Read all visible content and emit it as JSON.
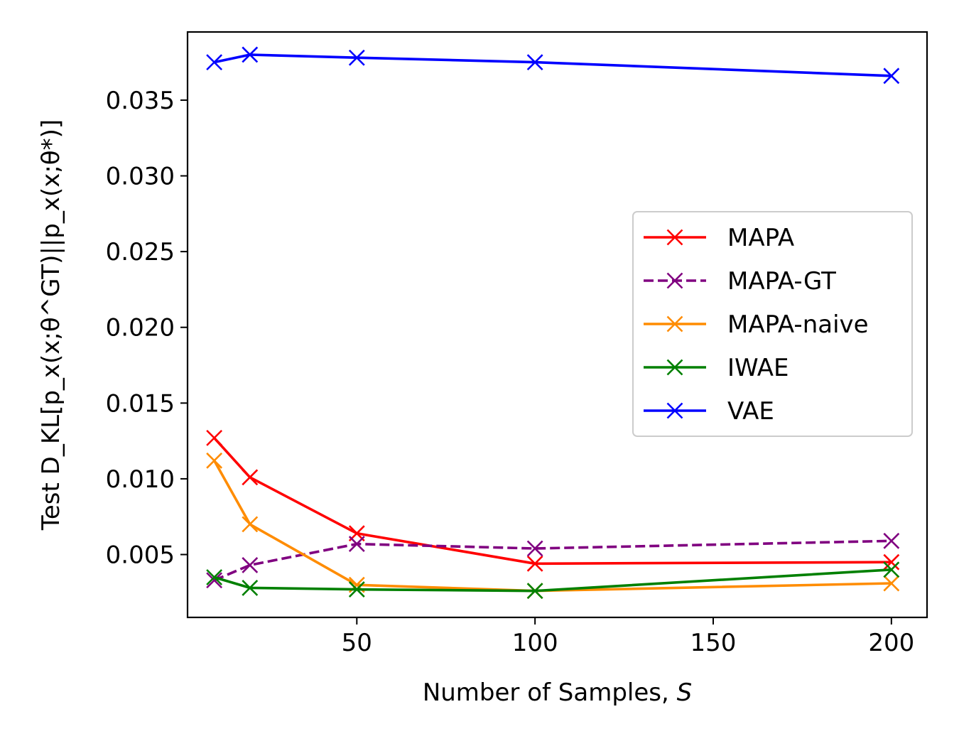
{
  "chart_data": {
    "type": "line",
    "title": "",
    "xlabel_prefix": "Number of Samples, ",
    "xlabel_var": "S",
    "ylabel": "Test D_KL[p_x(x;θ^GT)||p_x(x;θ*)]",
    "xlim": [
      2.5,
      210
    ],
    "ylim": [
      0.00085,
      0.0395
    ],
    "xticks": [
      50,
      100,
      150,
      200
    ],
    "yticks": [
      0.005,
      0.01,
      0.015,
      0.02,
      0.025,
      0.03,
      0.035
    ],
    "ytick_labels": [
      "0.005",
      "0.010",
      "0.015",
      "0.020",
      "0.025",
      "0.030",
      "0.035"
    ],
    "xtick_labels": [
      "50",
      "100",
      "150",
      "200"
    ],
    "grid": false,
    "legend_position": "center-right",
    "x": [
      10,
      20,
      50,
      100,
      200
    ],
    "series": [
      {
        "name": "MAPA",
        "color": "#ff0000",
        "dash": "solid",
        "values": [
          0.0127,
          0.0101,
          0.0064,
          0.0044,
          0.0045
        ]
      },
      {
        "name": "MAPA-GT",
        "color": "#800080",
        "dash": "dashed",
        "values": [
          0.0033,
          0.0043,
          0.0057,
          0.0054,
          0.0059
        ]
      },
      {
        "name": "MAPA-naive",
        "color": "#ff8c00",
        "dash": "solid",
        "values": [
          0.0112,
          0.007,
          0.003,
          0.0026,
          0.0031
        ]
      },
      {
        "name": "IWAE",
        "color": "#008000",
        "dash": "solid",
        "values": [
          0.0035,
          0.0028,
          0.0027,
          0.0026,
          0.004
        ]
      },
      {
        "name": "VAE",
        "color": "#0000ff",
        "dash": "solid",
        "values": [
          0.0375,
          0.038,
          0.0378,
          0.0375,
          0.0366
        ]
      }
    ]
  }
}
